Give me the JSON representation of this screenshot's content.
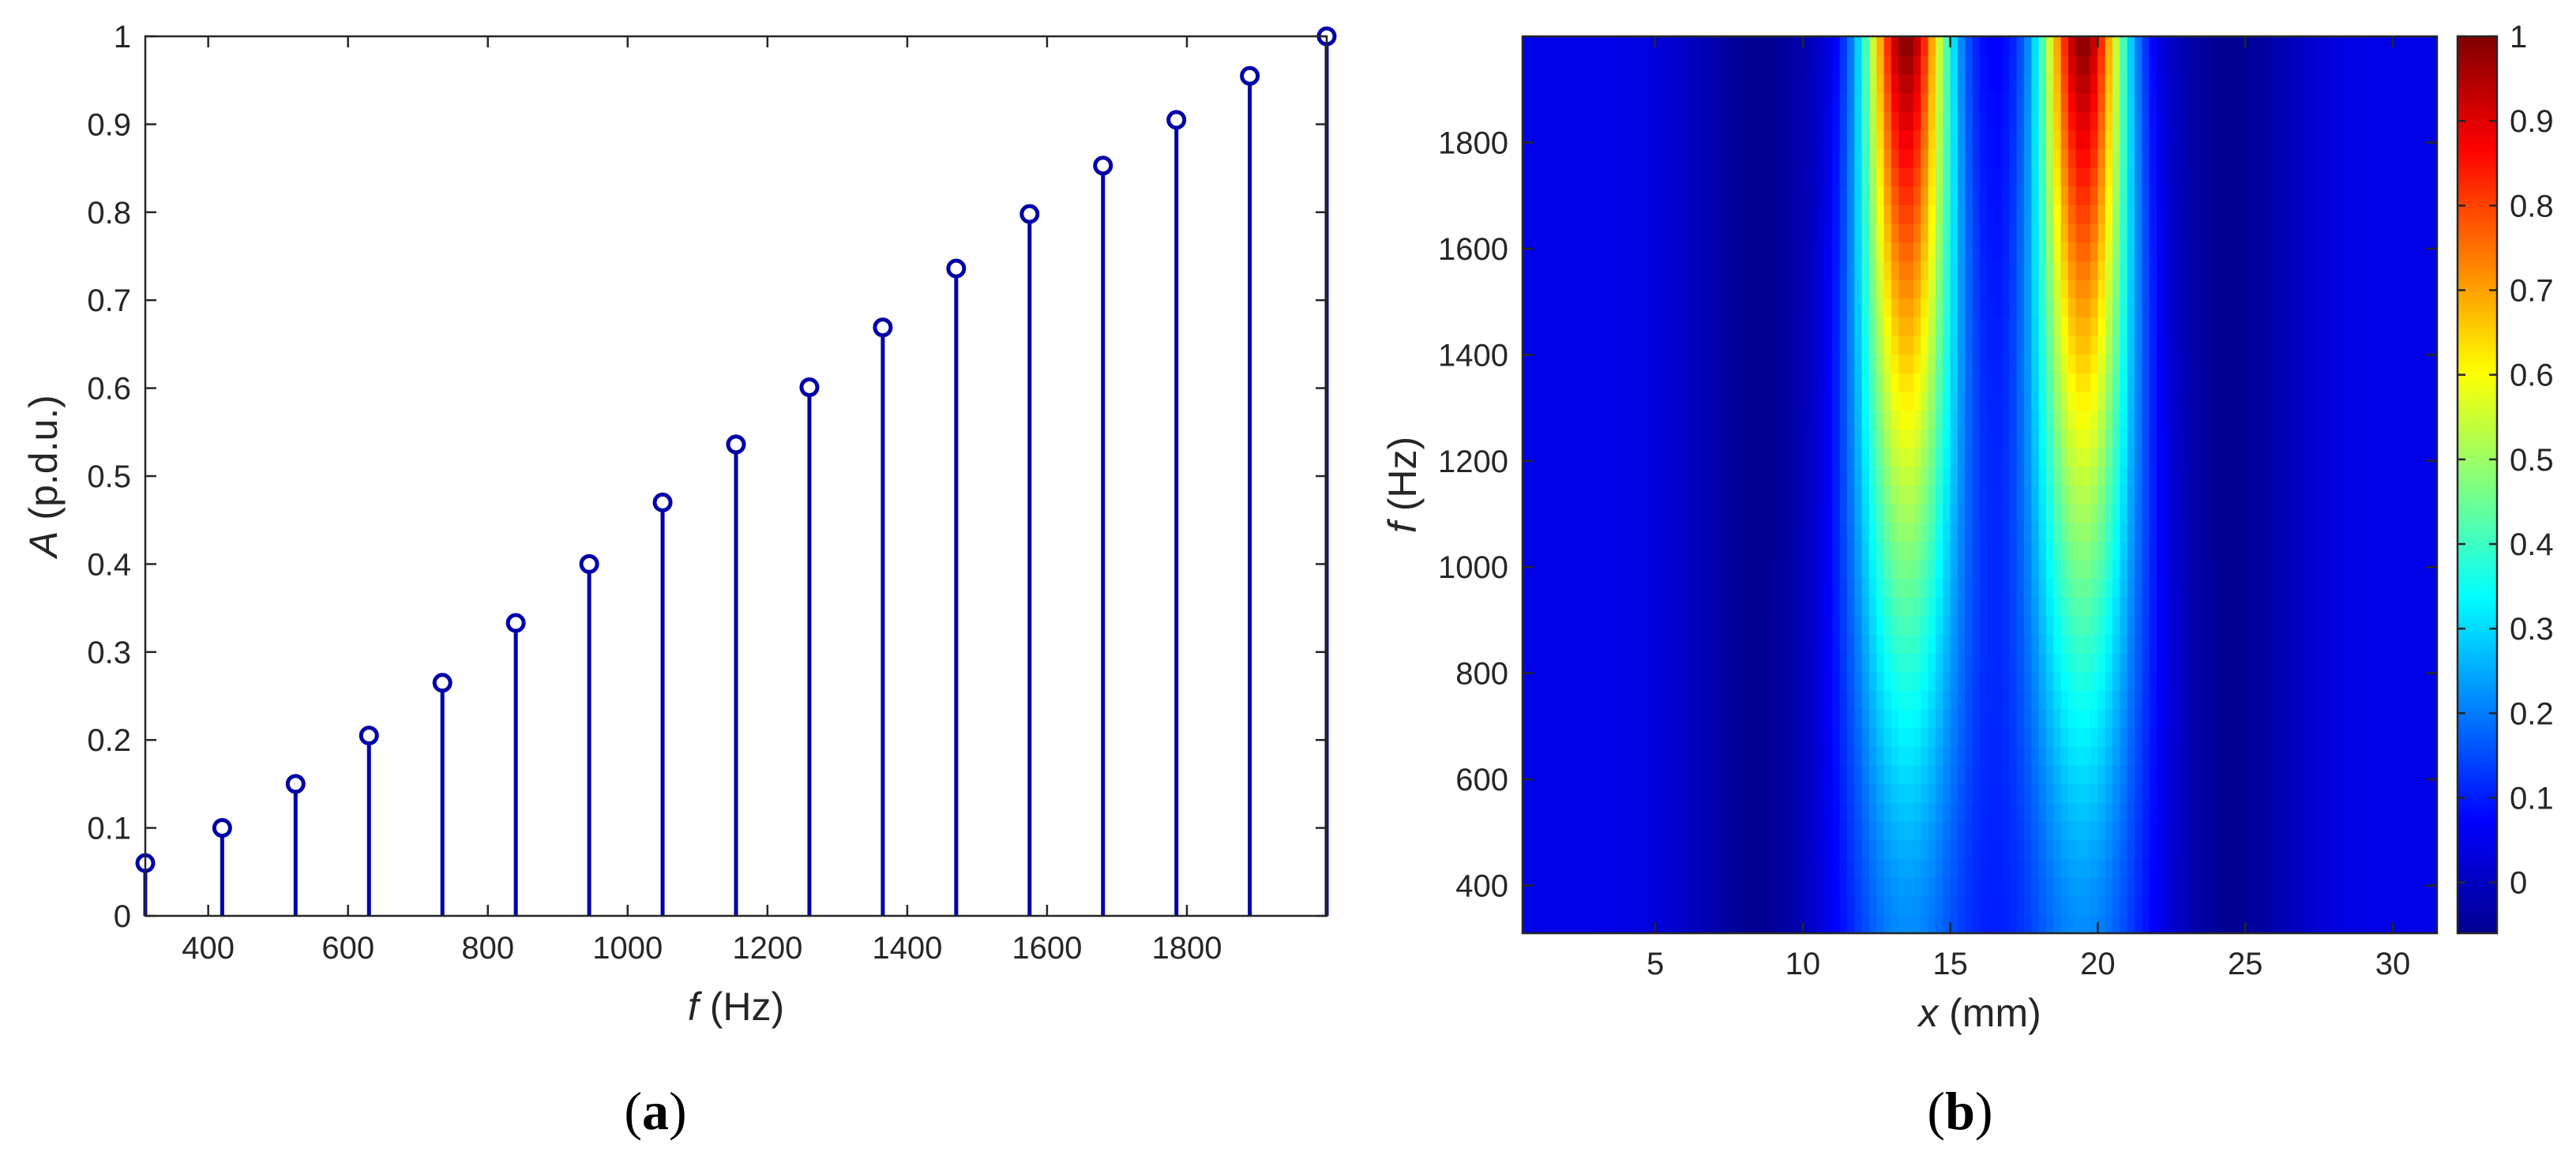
{
  "panels": {
    "a": {
      "label_open": "(",
      "label_letter": "a",
      "label_close": ")"
    },
    "b": {
      "label_open": "(",
      "label_letter": "b",
      "label_close": ")"
    }
  },
  "chart_data": [
    {
      "type": "stem",
      "xlabel": {
        "symbol": "f",
        "unit": " (Hz)"
      },
      "ylabel": {
        "symbol": "A",
        "unit": " (p.d.u.)"
      },
      "xlim": [
        310,
        2000
      ],
      "ylim": [
        0,
        1
      ],
      "xticks": [
        400,
        600,
        800,
        1000,
        1200,
        1400,
        1600,
        1800
      ],
      "yticks": [
        0,
        0.1,
        0.2,
        0.3,
        0.4,
        0.5,
        0.6,
        0.7,
        0.8,
        0.9,
        1
      ],
      "x": [
        310,
        420,
        525,
        630,
        735,
        840,
        945,
        1050,
        1155,
        1260,
        1365,
        1470,
        1575,
        1680,
        1785,
        1890,
        2000
      ],
      "values": [
        0.06,
        0.1,
        0.15,
        0.205,
        0.265,
        0.333,
        0.4,
        0.47,
        0.536,
        0.601,
        0.669,
        0.736,
        0.798,
        0.853,
        0.905,
        0.955,
        1.0
      ],
      "color": "#0000a8"
    },
    {
      "type": "heatmap",
      "xlabel": {
        "symbol": "x",
        "unit": " (mm)"
      },
      "ylabel": {
        "symbol": "f",
        "unit": " (Hz)"
      },
      "xlim": [
        0.5,
        31.5
      ],
      "ylim": [
        310,
        2000
      ],
      "xticks": [
        5,
        10,
        15,
        20,
        25,
        30
      ],
      "yticks": [
        400,
        600,
        800,
        1000,
        1200,
        1400,
        1600,
        1800
      ],
      "colorbar": {
        "range": [
          -0.06,
          1
        ],
        "ticks": [
          0,
          0.1,
          0.2,
          0.3,
          0.4,
          0.5,
          0.6,
          0.7,
          0.8,
          0.9,
          1
        ],
        "tick_labels": [
          "0",
          "0.1",
          "0.2",
          "0.3",
          "0.4",
          "0.5",
          "0.6",
          "0.7",
          "0.8",
          "0.9",
          "1"
        ],
        "colormap": "jet"
      },
      "peaks_mm": [
        13.5,
        19.5
      ],
      "peak_value_at_fmax": 1.0,
      "background_value": 0.05,
      "dark_edges_mm": [
        8.5,
        24.5
      ]
    }
  ]
}
